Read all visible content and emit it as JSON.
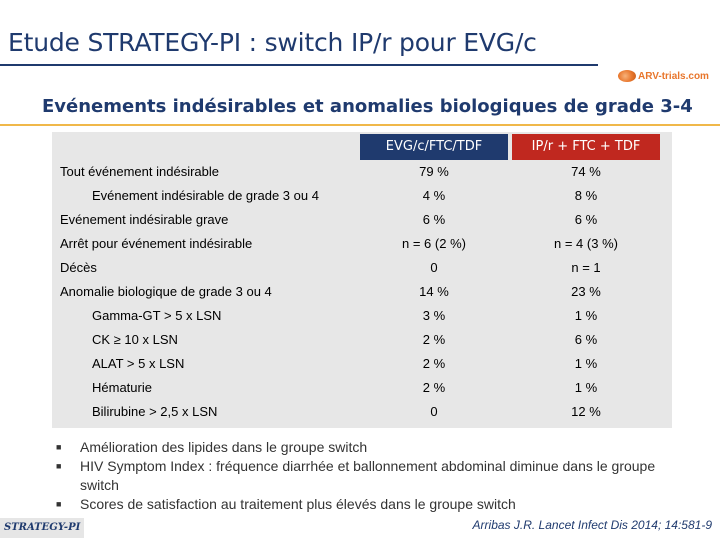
{
  "title": "Etude STRATEGY-PI : switch IP/r pour EVG/c",
  "subtitle": "Evénements indésirables et anomalies biologiques de grade 3-4",
  "logo": {
    "text": "ARV-trials.com"
  },
  "table": {
    "headers": [
      "EVG/c/FTC/TDF",
      "IP/r + FTC + TDF"
    ],
    "rows": [
      {
        "label": "Tout événement indésirable",
        "v1": "79 %",
        "v2": "74 %",
        "indent": 0
      },
      {
        "label": "Evénement indésirable de grade 3 ou 4",
        "v1": "4 %",
        "v2": "8 %",
        "indent": 1
      },
      {
        "label": "Evénement indésirable grave",
        "v1": "6 %",
        "v2": "6 %",
        "indent": 0
      },
      {
        "label": "Arrêt pour événement indésirable",
        "v1": "n = 6 (2 %)",
        "v2": "n = 4 (3 %)",
        "indent": 0
      },
      {
        "label": "Décès",
        "v1": "0",
        "v2": "n = 1",
        "indent": 0
      },
      {
        "label": "Anomalie biologique de grade 3 ou 4",
        "v1": "14 %",
        "v2": "23 %",
        "indent": 0
      },
      {
        "label": "Gamma-GT > 5 x LSN",
        "v1": "3 %",
        "v2": "1 %",
        "indent": 1
      },
      {
        "label": "CK ≥ 10 x LSN",
        "v1": "2 %",
        "v2": "6 %",
        "indent": 1
      },
      {
        "label": "ALAT > 5 x LSN",
        "v1": "2 %",
        "v2": "1 %",
        "indent": 1
      },
      {
        "label": "Hématurie",
        "v1": "2 %",
        "v2": "1 %",
        "indent": 1
      },
      {
        "label": "Bilirubine > 2,5 x LSN",
        "v1": "0",
        "v2": "12 %",
        "indent": 1
      }
    ]
  },
  "bullets": [
    "Amélioration des lipides dans le groupe switch",
    "HIV Symptom Index : fréquence diarrhée et ballonnement abdominal diminue dans le groupe switch",
    "Scores de satisfaction au traitement plus élevés dans le groupe switch"
  ],
  "footer_tag": "STRATEGY-PI",
  "citation": "Arribas J.R. Lancet Infect Dis 2014; 14:581-9",
  "colors": {
    "navy": "#1f3a6e",
    "red": "#c0281f",
    "accent": "#f0b84a",
    "panel": "#e7e7e7"
  }
}
